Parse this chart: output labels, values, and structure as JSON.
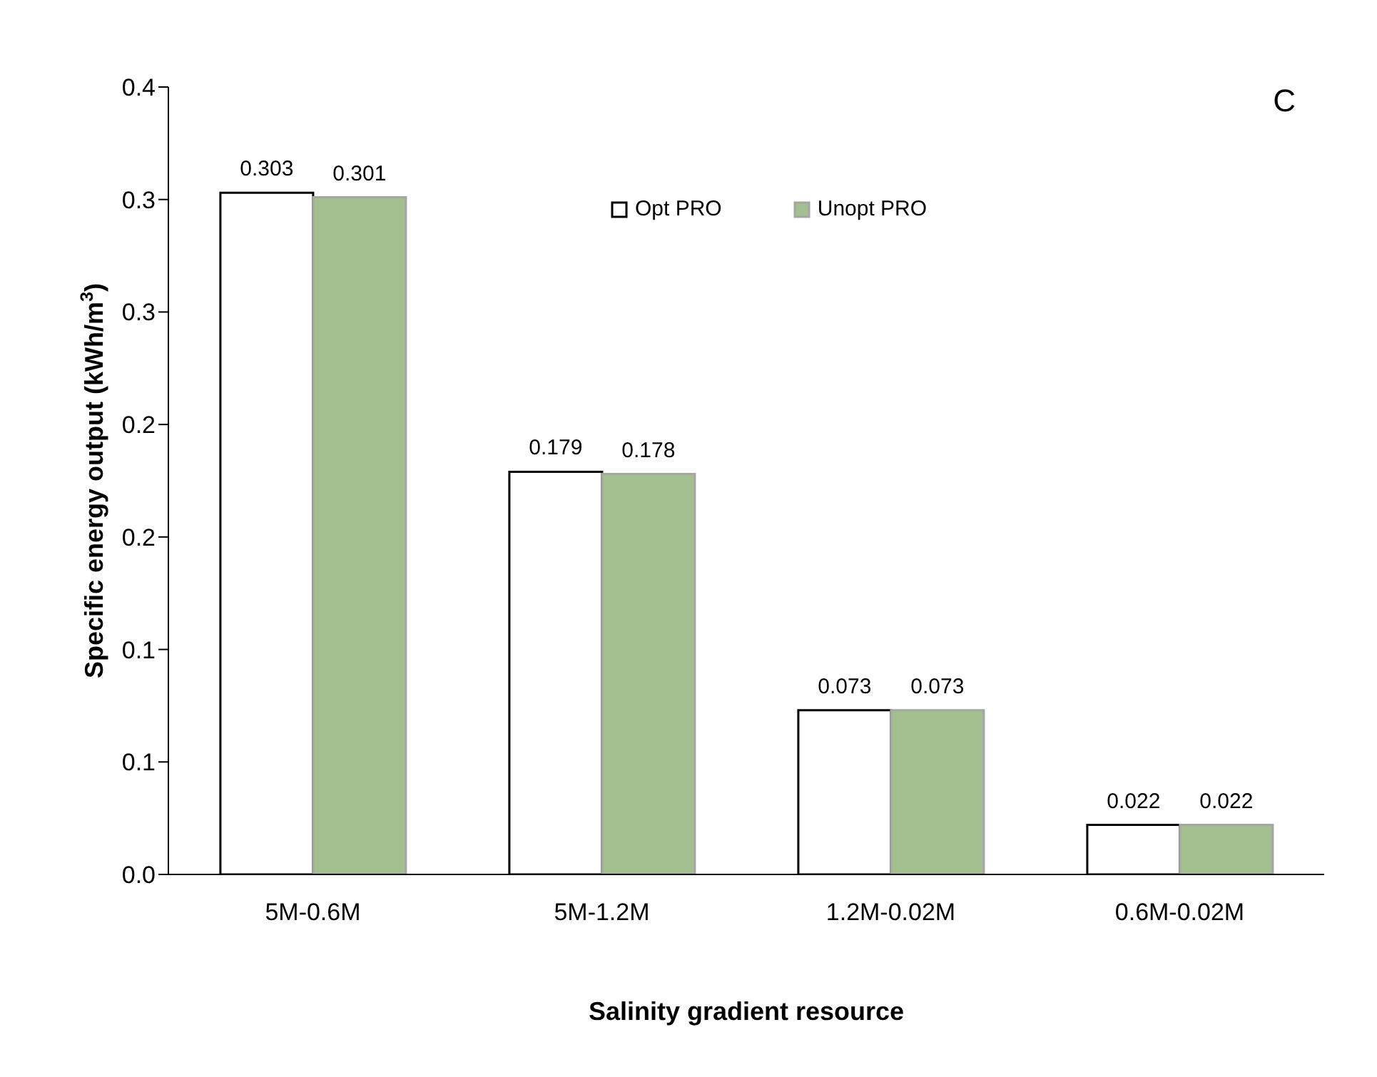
{
  "chart_data": {
    "type": "bar",
    "xlabel": "Salinity gradient resource",
    "ylabel": "Specific energy output (kWh/m$^{3}$)",
    "categories": [
      "5M-0.6M",
      "5M-1.2M",
      "1.2M-0.02M",
      "0.6M-0.02M"
    ],
    "series": [
      {
        "name": "Opt PRO",
        "color": "#ffffff",
        "values": [
          0.303,
          0.179,
          0.073,
          0.022
        ]
      },
      {
        "name": "Unopt PRO",
        "color": "#a3bf8f",
        "values": [
          0.301,
          0.178,
          0.073,
          0.022
        ]
      }
    ],
    "ylim": [
      0,
      0.35
    ],
    "yticks": [
      {
        "value": 0,
        "label": "0.0"
      },
      {
        "value": 0.05,
        "label": "0.1"
      },
      {
        "value": 0.1,
        "label": "0.1"
      },
      {
        "value": 0.15,
        "label": "0.2"
      },
      {
        "value": 0.2,
        "label": "0.2"
      },
      {
        "value": 0.25,
        "label": "0.3"
      },
      {
        "value": 0.3,
        "label": "0.3"
      },
      {
        "value": 0.35,
        "label": "0.4"
      }
    ],
    "data_labels": true,
    "legend": "top",
    "grid": false,
    "annotations": [
      "C"
    ]
  }
}
